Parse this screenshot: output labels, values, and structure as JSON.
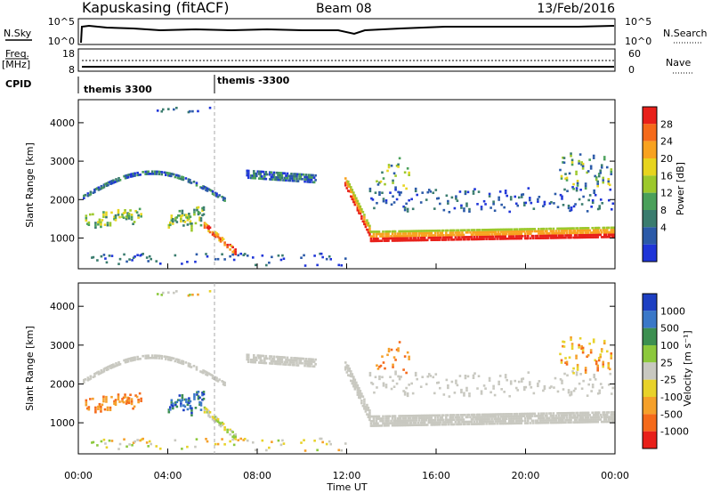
{
  "header": {
    "station": "Kapuskasing (fitACF)",
    "beam": "Beam 08",
    "date": "13/Feb/2016"
  },
  "summary": {
    "nsky_label": "N.Sky",
    "nsky_ticks": [
      "10^5",
      "10^0"
    ],
    "nsearch_label": "N.Search",
    "nsearch_ticks": [
      "10^5",
      "10^0"
    ],
    "freq_label": "Freq.",
    "freq_unit": "[MHz]",
    "freq_ticks": [
      "18",
      "8"
    ],
    "nave_label": "Nave",
    "nave_ticks": [
      "60",
      "0"
    ],
    "cpid_label": "CPID",
    "cpid_segments": [
      {
        "name": "themis 3300",
        "start_hour": 0
      },
      {
        "name": "themis -3300",
        "start_hour": 6
      }
    ]
  },
  "chart_data": [
    {
      "type": "heatmap",
      "ylabel": "Slant Range [km]",
      "yticks": [
        1000,
        2000,
        3000,
        4000
      ],
      "ylim": [
        200,
        4600
      ],
      "xlim": [
        0,
        24
      ],
      "colorbar": {
        "label": "Power [dB]",
        "ticks": [
          "28",
          "24",
          "20",
          "16",
          "12",
          "8",
          "4"
        ],
        "colors": [
          "#e8201a",
          "#f56a1a",
          "#f8a21f",
          "#e7d41e",
          "#9cc82b",
          "#4aa05a",
          "#3a7c6e",
          "#2b5aa8",
          "#1f35d8"
        ]
      }
    },
    {
      "type": "heatmap",
      "ylabel": "Slant Range [km]",
      "xlabel": "Time UT",
      "yticks": [
        1000,
        2000,
        3000,
        4000
      ],
      "ylim": [
        200,
        4600
      ],
      "xlim": [
        0,
        24
      ],
      "xticks": [
        "00:00",
        "04:00",
        "08:00",
        "12:00",
        "16:00",
        "20:00",
        "00:00"
      ],
      "colorbar": {
        "label": "Velocity [m s⁻¹]",
        "ticks": [
          "1000",
          "500",
          "100",
          "25",
          "-25",
          "-100",
          "-500",
          "-1000"
        ],
        "colors": [
          "#1d3fc2",
          "#3a78c8",
          "#3c8f50",
          "#8cc83c",
          "#c8c8c0",
          "#e8d22a",
          "#f5a02a",
          "#f56a1a",
          "#e8201a"
        ]
      }
    }
  ]
}
